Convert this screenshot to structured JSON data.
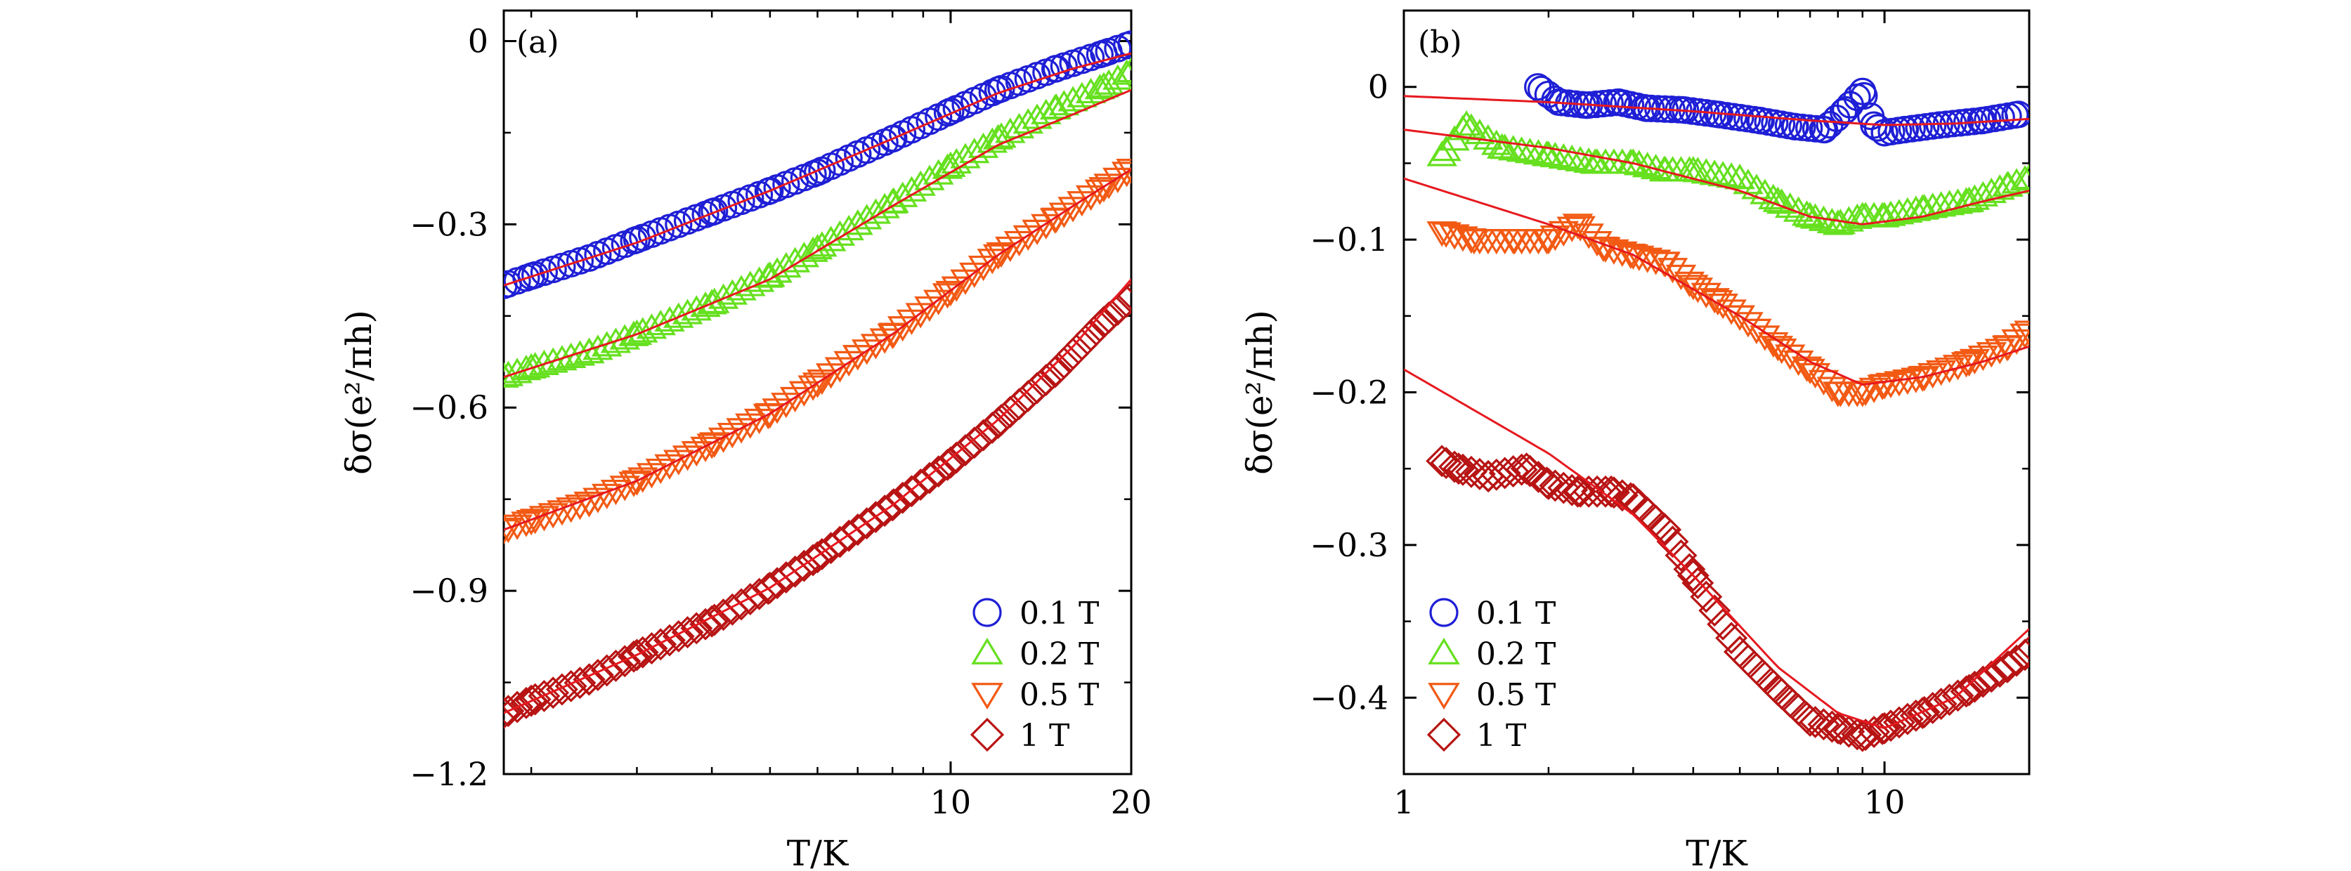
{
  "chart_data": [
    {
      "panel": "(a)",
      "type": "scatter",
      "xlabel": "T/K",
      "ylabel": "δσ(e²/πh)",
      "x_scale": "log",
      "xlim": [
        1.8,
        20
      ],
      "ylim": [
        -1.2,
        0.05
      ],
      "xticks": [
        10,
        20
      ],
      "xtick_labels": [
        "10",
        "20"
      ],
      "yticks": [
        0,
        -0.3,
        -0.6,
        -0.9,
        -1.2
      ],
      "ytick_labels": [
        "0",
        "−0.3",
        "−0.6",
        "−0.9",
        "−1.2"
      ],
      "legend": {
        "position": "bottom-right",
        "entries": [
          "0.1 T",
          "0.2 T",
          "0.5 T",
          "1 T"
        ]
      },
      "series": [
        {
          "name": "0.1 T",
          "marker": "circle",
          "color": "#1f1fd6",
          "points": [
            [
              1.8,
              -0.4
            ],
            [
              2.0,
              -0.385
            ],
            [
              2.5,
              -0.355
            ],
            [
              3.0,
              -0.325
            ],
            [
              4.0,
              -0.28
            ],
            [
              5.0,
              -0.245
            ],
            [
              6.0,
              -0.215
            ],
            [
              7.0,
              -0.185
            ],
            [
              8.0,
              -0.16
            ],
            [
              10.0,
              -0.115
            ],
            [
              12.0,
              -0.08
            ],
            [
              15.0,
              -0.045
            ],
            [
              18.0,
              -0.02
            ],
            [
              20.0,
              -0.005
            ]
          ],
          "fit": [
            [
              1.8,
              -0.4
            ],
            [
              3.0,
              -0.33
            ],
            [
              5.0,
              -0.245
            ],
            [
              8.0,
              -0.16
            ],
            [
              12.0,
              -0.085
            ],
            [
              16.0,
              -0.045
            ],
            [
              20.0,
              -0.02
            ]
          ]
        },
        {
          "name": "0.2 T",
          "marker": "triangle-up",
          "color": "#66e01f",
          "points": [
            [
              1.8,
              -0.55
            ],
            [
              2.0,
              -0.535
            ],
            [
              2.5,
              -0.51
            ],
            [
              3.0,
              -0.48
            ],
            [
              4.0,
              -0.43
            ],
            [
              5.0,
              -0.385
            ],
            [
              6.0,
              -0.34
            ],
            [
              7.0,
              -0.3
            ],
            [
              8.0,
              -0.265
            ],
            [
              10.0,
              -0.205
            ],
            [
              12.0,
              -0.16
            ],
            [
              15.0,
              -0.11
            ],
            [
              18.0,
              -0.075
            ],
            [
              20.0,
              -0.05
            ]
          ],
          "fit": [
            [
              1.8,
              -0.55
            ],
            [
              3.0,
              -0.48
            ],
            [
              5.0,
              -0.39
            ],
            [
              8.0,
              -0.27
            ],
            [
              12.0,
              -0.17
            ],
            [
              16.0,
              -0.12
            ],
            [
              20.0,
              -0.08
            ]
          ]
        },
        {
          "name": "0.5 T",
          "marker": "triangle-down",
          "color": "#f25a14",
          "points": [
            [
              1.8,
              -0.8
            ],
            [
              2.0,
              -0.785
            ],
            [
              2.5,
              -0.755
            ],
            [
              3.0,
              -0.72
            ],
            [
              4.0,
              -0.66
            ],
            [
              5.0,
              -0.61
            ],
            [
              6.0,
              -0.56
            ],
            [
              7.0,
              -0.515
            ],
            [
              8.0,
              -0.48
            ],
            [
              10.0,
              -0.41
            ],
            [
              12.0,
              -0.35
            ],
            [
              15.0,
              -0.29
            ],
            [
              18.0,
              -0.24
            ],
            [
              20.0,
              -0.21
            ]
          ],
          "fit": [
            [
              1.8,
              -0.8
            ],
            [
              3.0,
              -0.72
            ],
            [
              5.0,
              -0.61
            ],
            [
              8.0,
              -0.48
            ],
            [
              12.0,
              -0.35
            ],
            [
              16.0,
              -0.27
            ],
            [
              20.0,
              -0.21
            ]
          ]
        },
        {
          "name": "1 T",
          "marker": "diamond",
          "color": "#b81414",
          "points": [
            [
              1.8,
              -1.1
            ],
            [
              2.0,
              -1.08
            ],
            [
              2.5,
              -1.045
            ],
            [
              3.0,
              -1.005
            ],
            [
              4.0,
              -0.95
            ],
            [
              5.0,
              -0.895
            ],
            [
              6.0,
              -0.845
            ],
            [
              7.0,
              -0.8
            ],
            [
              8.0,
              -0.76
            ],
            [
              10.0,
              -0.69
            ],
            [
              12.0,
              -0.625
            ],
            [
              15.0,
              -0.54
            ],
            [
              18.0,
              -0.46
            ],
            [
              20.0,
              -0.42
            ]
          ],
          "fit": [
            [
              1.8,
              -1.1
            ],
            [
              3.0,
              -1.005
            ],
            [
              5.0,
              -0.895
            ],
            [
              8.0,
              -0.76
            ],
            [
              12.0,
              -0.62
            ],
            [
              16.0,
              -0.5
            ],
            [
              20.0,
              -0.39
            ]
          ]
        }
      ]
    },
    {
      "panel": "(b)",
      "type": "scatter",
      "xlabel": "T/K",
      "ylabel": "δσ(e²/πh)",
      "x_scale": "log",
      "xlim": [
        1,
        20
      ],
      "ylim": [
        -0.45,
        0.05
      ],
      "xticks": [
        1,
        10
      ],
      "xtick_labels": [
        "1",
        "10"
      ],
      "yticks": [
        0,
        -0.1,
        -0.2,
        -0.3,
        -0.4
      ],
      "ytick_labels": [
        "0",
        "−0.1",
        "−0.2",
        "−0.3",
        "−0.4"
      ],
      "legend": {
        "position": "bottom-left",
        "entries": [
          "0.1 T",
          "0.2 T",
          "0.5 T",
          "1 T"
        ]
      },
      "series": [
        {
          "name": "0.1 T",
          "marker": "circle",
          "color": "#1f1fd6",
          "points": [
            [
              1.9,
              0.0
            ],
            [
              2.1,
              -0.01
            ],
            [
              2.4,
              -0.012
            ],
            [
              2.8,
              -0.01
            ],
            [
              3.2,
              -0.014
            ],
            [
              3.8,
              -0.015
            ],
            [
              4.5,
              -0.018
            ],
            [
              5.5,
              -0.022
            ],
            [
              6.5,
              -0.026
            ],
            [
              7.5,
              -0.028
            ],
            [
              8.3,
              -0.015
            ],
            [
              9.0,
              -0.003
            ],
            [
              9.5,
              -0.025
            ],
            [
              10.0,
              -0.03
            ],
            [
              11.0,
              -0.028
            ],
            [
              13.0,
              -0.025
            ],
            [
              16.0,
              -0.022
            ],
            [
              19.0,
              -0.018
            ]
          ],
          "fit": [
            [
              1.0,
              -0.006
            ],
            [
              2.0,
              -0.01
            ],
            [
              4.0,
              -0.016
            ],
            [
              7.0,
              -0.022
            ],
            [
              10.0,
              -0.025
            ],
            [
              14.0,
              -0.024
            ],
            [
              20.0,
              -0.021
            ]
          ]
        },
        {
          "name": "0.2 T",
          "marker": "triangle-up",
          "color": "#66e01f",
          "points": [
            [
              1.2,
              -0.045
            ],
            [
              1.35,
              -0.025
            ],
            [
              1.6,
              -0.04
            ],
            [
              2.0,
              -0.045
            ],
            [
              2.5,
              -0.05
            ],
            [
              3.0,
              -0.05
            ],
            [
              3.5,
              -0.055
            ],
            [
              4.0,
              -0.055
            ],
            [
              5.0,
              -0.06
            ],
            [
              6.0,
              -0.075
            ],
            [
              7.0,
              -0.085
            ],
            [
              8.0,
              -0.09
            ],
            [
              9.0,
              -0.085
            ],
            [
              10.0,
              -0.085
            ],
            [
              12.0,
              -0.08
            ],
            [
              15.0,
              -0.075
            ],
            [
              18.0,
              -0.065
            ],
            [
              20.0,
              -0.06
            ]
          ],
          "fit": [
            [
              1.0,
              -0.028
            ],
            [
              2.0,
              -0.04
            ],
            [
              3.0,
              -0.05
            ],
            [
              5.0,
              -0.068
            ],
            [
              7.0,
              -0.085
            ],
            [
              9.0,
              -0.09
            ],
            [
              12.0,
              -0.085
            ],
            [
              16.0,
              -0.075
            ],
            [
              20.0,
              -0.068
            ]
          ]
        },
        {
          "name": "0.5 T",
          "marker": "triangle-down",
          "color": "#f25a14",
          "points": [
            [
              1.2,
              -0.095
            ],
            [
              1.4,
              -0.1
            ],
            [
              1.7,
              -0.1
            ],
            [
              2.0,
              -0.1
            ],
            [
              2.3,
              -0.09
            ],
            [
              2.6,
              -0.105
            ],
            [
              3.0,
              -0.11
            ],
            [
              3.5,
              -0.115
            ],
            [
              4.0,
              -0.13
            ],
            [
              4.5,
              -0.14
            ],
            [
              5.0,
              -0.15
            ],
            [
              6.0,
              -0.17
            ],
            [
              7.0,
              -0.185
            ],
            [
              8.0,
              -0.2
            ],
            [
              9.0,
              -0.2
            ],
            [
              10.0,
              -0.195
            ],
            [
              12.0,
              -0.19
            ],
            [
              15.0,
              -0.18
            ],
            [
              18.0,
              -0.17
            ],
            [
              20.0,
              -0.16
            ]
          ],
          "fit": [
            [
              1.0,
              -0.06
            ],
            [
              2.0,
              -0.09
            ],
            [
              3.0,
              -0.11
            ],
            [
              5.0,
              -0.15
            ],
            [
              7.0,
              -0.18
            ],
            [
              9.0,
              -0.195
            ],
            [
              12.0,
              -0.19
            ],
            [
              16.0,
              -0.18
            ],
            [
              20.0,
              -0.17
            ]
          ]
        },
        {
          "name": "1 T",
          "marker": "diamond",
          "color": "#b81414",
          "points": [
            [
              1.2,
              -0.245
            ],
            [
              1.3,
              -0.25
            ],
            [
              1.5,
              -0.255
            ],
            [
              1.8,
              -0.25
            ],
            [
              2.0,
              -0.26
            ],
            [
              2.3,
              -0.265
            ],
            [
              2.7,
              -0.265
            ],
            [
              3.0,
              -0.27
            ],
            [
              3.5,
              -0.29
            ],
            [
              4.0,
              -0.32
            ],
            [
              5.0,
              -0.37
            ],
            [
              6.0,
              -0.395
            ],
            [
              7.0,
              -0.415
            ],
            [
              8.0,
              -0.42
            ],
            [
              9.0,
              -0.425
            ],
            [
              10.0,
              -0.42
            ],
            [
              12.0,
              -0.41
            ],
            [
              15.0,
              -0.395
            ],
            [
              18.0,
              -0.38
            ],
            [
              20.0,
              -0.37
            ]
          ],
          "fit": [
            [
              1.0,
              -0.185
            ],
            [
              2.0,
              -0.24
            ],
            [
              3.0,
              -0.28
            ],
            [
              4.0,
              -0.32
            ],
            [
              6.0,
              -0.38
            ],
            [
              8.0,
              -0.41
            ],
            [
              10.0,
              -0.42
            ],
            [
              14.0,
              -0.4
            ],
            [
              20.0,
              -0.355
            ]
          ]
        }
      ]
    }
  ],
  "fit_color": "#e6191f"
}
